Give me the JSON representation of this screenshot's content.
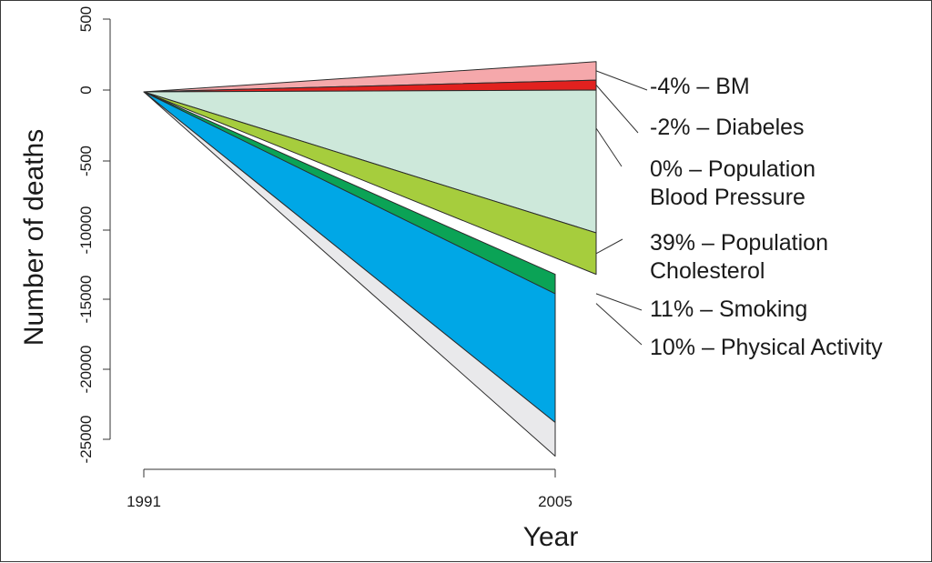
{
  "chart_data": {
    "type": "area",
    "xlabel": "Year",
    "ylabel": "Number of deaths",
    "x_ticks": [
      "1991",
      "2005"
    ],
    "y_ticks": [
      "500",
      "0",
      "-500",
      "-10000",
      "-15000",
      "-20000",
      "-25000"
    ],
    "x": [
      1991,
      2005
    ],
    "series": [
      {
        "name": "-4% – BM",
        "color": "#f5a8ab",
        "band_end_2005": [
          70,
          200
        ]
      },
      {
        "name": "-2% – Diabeles",
        "color": "#e1211f",
        "band_end_2005": [
          0,
          70
        ]
      },
      {
        "name": "0% – Population Blood Pressure",
        "color": "#cde8da",
        "band_end_2005": [
          -10200,
          0
        ]
      },
      {
        "name": "39% – Population Cholesterol",
        "color": "#a6cd3d",
        "band_end_2005": [
          -13200,
          -10200
        ]
      },
      {
        "name": "11% – Smoking",
        "color": "#0ba356",
        "band_end_2005": [
          -16000,
          -13200
        ]
      },
      {
        "name": "10% – Physical Activity",
        "color": "#00a7e6",
        "band_end_2005": [
          -23800,
          -14600
        ]
      },
      {
        "name": "",
        "color": "#e9e9eb",
        "band_end_2005": [
          -26200,
          -23800
        ]
      }
    ],
    "legend": [
      {
        "lines": [
          "-4% – BM"
        ]
      },
      {
        "lines": [
          "-2% – Diabeles"
        ]
      },
      {
        "lines": [
          "0% – Population",
          "Blood Pressure"
        ]
      },
      {
        "lines": [
          "39% – Population",
          "Cholesterol"
        ]
      },
      {
        "lines": [
          "11% – Smoking"
        ]
      },
      {
        "lines": [
          "10% – Physical Activity"
        ]
      }
    ],
    "legend_position": "right",
    "grid": false
  }
}
